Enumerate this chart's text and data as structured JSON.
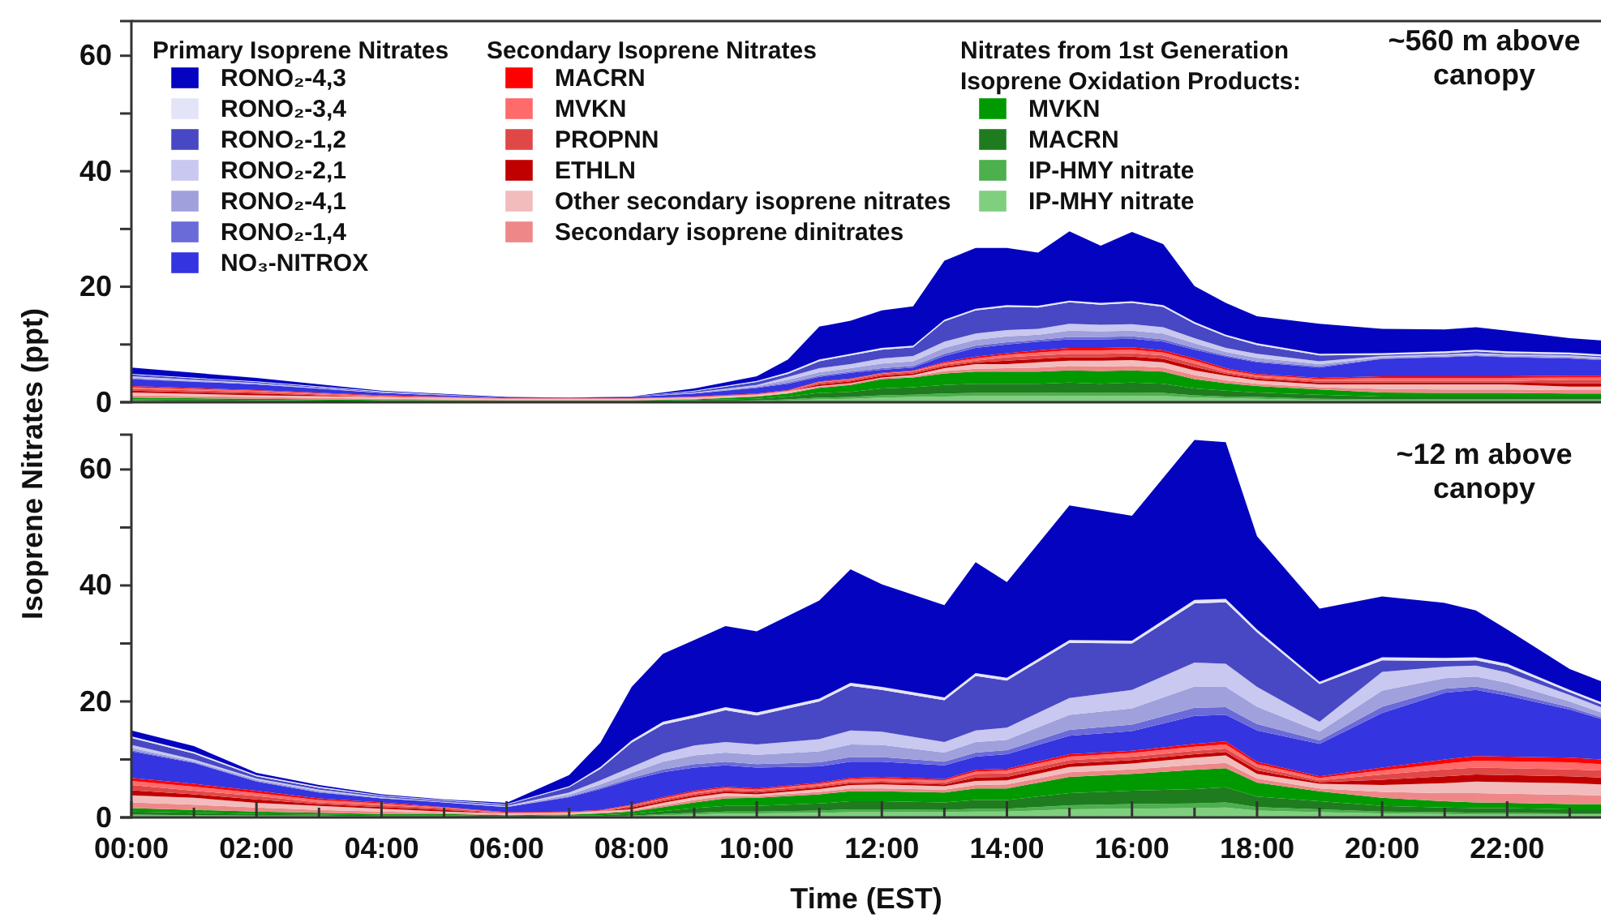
{
  "chart_data": [
    {
      "type": "area",
      "stacked": true,
      "legend": "top",
      "tick_labels": "y",
      "annotations": [
        "Primary Isoprene Nitrates",
        "Secondary Isoprene Nitrates",
        "Nitrates from 1st Generation Isoprene Oxidation Products:",
        "~560 m above canopy"
      ],
      "x": [
        0,
        2,
        4,
        6,
        7,
        8,
        9,
        10,
        10.5,
        11,
        11.5,
        12,
        12.5,
        13,
        13.5,
        14,
        14.5,
        15,
        15.5,
        16,
        16.5,
        17,
        17.5,
        18,
        19,
        20,
        21,
        21.5,
        22,
        23,
        23.5
      ],
      "xlim": [
        0,
        23.5
      ],
      "ylim": [
        0,
        66
      ],
      "yticks": [
        0,
        {
          "value": 10,
          "label": null
        },
        20,
        {
          "value": 30,
          "label": null
        },
        40,
        {
          "value": 50,
          "label": null
        },
        60
      ],
      "series": [
        {
          "name": "IP-MHY nitrate",
          "color": "#7fcf7f",
          "values": [
            0.2,
            0.1,
            0.1,
            0.1,
            0.1,
            0.1,
            0.1,
            0.2,
            0.3,
            0.5,
            0.6,
            0.8,
            0.9,
            1.0,
            1.1,
            1.1,
            1.1,
            1.1,
            1.1,
            1.1,
            1.1,
            0.8,
            0.7,
            0.6,
            0.4,
            0.3,
            0.3,
            0.3,
            0.3,
            0.3,
            0.3
          ]
        },
        {
          "name": "IP-HMY nitrate",
          "color": "#4cb04c",
          "values": [
            0.1,
            0.1,
            0.0,
            0.0,
            0.0,
            0.0,
            0.1,
            0.1,
            0.2,
            0.3,
            0.3,
            0.4,
            0.4,
            0.5,
            0.5,
            0.5,
            0.5,
            0.6,
            0.5,
            0.6,
            0.5,
            0.4,
            0.3,
            0.3,
            0.2,
            0.2,
            0.2,
            0.2,
            0.2,
            0.2,
            0.2
          ]
        },
        {
          "name": "MACRN",
          "color": "#1e7c1e",
          "values": [
            0.2,
            0.2,
            0.1,
            0.1,
            0.1,
            0.1,
            0.2,
            0.3,
            0.5,
            0.8,
            0.9,
            1.2,
            1.3,
            1.5,
            1.6,
            1.6,
            1.6,
            1.7,
            1.6,
            1.7,
            1.6,
            1.2,
            1.0,
            0.8,
            0.7,
            0.5,
            0.5,
            0.5,
            0.5,
            0.5,
            0.5
          ]
        },
        {
          "name": "MVKN",
          "color": "#009a00",
          "values": [
            0.3,
            0.2,
            0.2,
            0.1,
            0.1,
            0.1,
            0.1,
            0.4,
            0.5,
            0.9,
            1.2,
            1.6,
            1.7,
            2.0,
            2.1,
            2.1,
            2.1,
            2.1,
            2.2,
            2.1,
            2.1,
            1.6,
            1.3,
            1.1,
            0.9,
            0.7,
            0.6,
            0.6,
            0.6,
            0.5,
            0.5
          ]
        },
        {
          "name": "Secondary isoprene dinitrates",
          "color": "#ee8888",
          "values": [
            0.4,
            0.3,
            0.2,
            0.1,
            0.1,
            0.1,
            0.1,
            0.1,
            0.1,
            0.2,
            0.2,
            0.2,
            0.2,
            0.4,
            0.5,
            0.6,
            0.7,
            0.8,
            0.8,
            0.8,
            0.7,
            0.7,
            0.5,
            0.4,
            0.4,
            0.6,
            0.6,
            0.6,
            0.6,
            0.6,
            0.6
          ]
        },
        {
          "name": "Other secondary isoprene nitrates",
          "color": "#f2bcbc",
          "values": [
            0.5,
            0.3,
            0.3,
            0.2,
            0.2,
            0.2,
            0.2,
            0.2,
            0.3,
            0.1,
            0.1,
            0.1,
            0.2,
            0.5,
            0.8,
            0.7,
            0.9,
            0.9,
            1.0,
            1.0,
            0.9,
            0.8,
            0.8,
            0.6,
            0.5,
            0.8,
            0.9,
            0.9,
            0.9,
            0.6,
            0.6
          ]
        },
        {
          "name": "ETHLN",
          "color": "#c00000",
          "values": [
            0.3,
            0.3,
            0.0,
            0.0,
            0.0,
            0.0,
            0.0,
            0.0,
            0.0,
            0.3,
            0.3,
            0.3,
            0.3,
            0.3,
            0.3,
            0.6,
            0.6,
            0.6,
            0.6,
            0.6,
            0.6,
            0.6,
            0.3,
            0.3,
            0.3,
            0.3,
            0.3,
            0.3,
            0.3,
            0.6,
            0.6
          ]
        },
        {
          "name": "PROPNN",
          "color": "#e04848",
          "values": [
            0.3,
            0.3,
            0.0,
            0.0,
            0.0,
            0.0,
            0.0,
            0.0,
            0.0,
            0.3,
            0.3,
            0.3,
            0.3,
            0.3,
            0.3,
            0.6,
            0.6,
            0.6,
            0.6,
            0.6,
            0.6,
            0.6,
            0.3,
            0.3,
            0.3,
            0.3,
            0.3,
            0.3,
            0.3,
            0.6,
            0.6
          ]
        },
        {
          "name": "MVKN",
          "color": "#ff6a6a",
          "values": [
            0.3,
            0.2,
            0.2,
            0.1,
            0.1,
            0.1,
            0.1,
            0.1,
            0.1,
            0.1,
            0.1,
            0.1,
            0.1,
            0.3,
            0.4,
            0.4,
            0.5,
            0.6,
            0.6,
            0.6,
            0.5,
            0.5,
            0.4,
            0.3,
            0.3,
            0.5,
            0.5,
            0.5,
            0.5,
            0.4,
            0.4
          ]
        },
        {
          "name": "MACRN",
          "color": "#ff0000",
          "values": [
            0.2,
            0.1,
            0.1,
            0.0,
            0.0,
            0.0,
            0.1,
            0.1,
            0.1,
            0.1,
            0.1,
            0.1,
            0.1,
            0.2,
            0.3,
            0.3,
            0.4,
            0.4,
            0.4,
            0.4,
            0.4,
            0.4,
            0.3,
            0.2,
            0.2,
            0.3,
            0.3,
            0.3,
            0.3,
            0.3,
            0.3
          ]
        },
        {
          "name": "NO₃-NITROX",
          "color": "#3434e0",
          "values": [
            1.2,
            1.0,
            0.4,
            0.1,
            0.1,
            0.2,
            0.5,
            1.0,
            1.1,
            0.8,
            1.0,
            0.5,
            0.5,
            1.0,
            1.5,
            1.5,
            1.5,
            1.5,
            1.5,
            1.5,
            1.5,
            1.5,
            2.0,
            2.0,
            1.8,
            3.0,
            3.3,
            3.5,
            3.3,
            3.0,
            2.7
          ]
        },
        {
          "name": "RONO₂-1,4",
          "color": "#6a6ad8",
          "values": [
            0.1,
            0.0,
            0.0,
            0.0,
            0.0,
            0.0,
            0.0,
            0.1,
            0.2,
            0.2,
            0.2,
            0.3,
            0.3,
            0.4,
            0.4,
            0.4,
            0.3,
            0.4,
            0.4,
            0.4,
            0.4,
            0.3,
            0.2,
            0.2,
            0.2,
            0.1,
            0.1,
            0.1,
            0.1,
            0.1,
            0.1
          ]
        },
        {
          "name": "RONO₂-4,1",
          "color": "#a0a0dc",
          "values": [
            0.2,
            0.1,
            0.0,
            0.0,
            0.0,
            0.0,
            0.1,
            0.2,
            0.5,
            0.6,
            0.6,
            0.8,
            0.8,
            1.0,
            1.0,
            1.0,
            0.9,
            1.1,
            1.0,
            1.0,
            1.0,
            0.8,
            0.6,
            0.6,
            0.4,
            0.2,
            0.2,
            0.2,
            0.2,
            0.2,
            0.2
          ]
        },
        {
          "name": "RONO₂-2,1",
          "color": "#c8c8f0",
          "values": [
            0.2,
            0.1,
            0.1,
            0.0,
            0.0,
            0.0,
            0.1,
            0.2,
            0.5,
            0.7,
            0.7,
            0.9,
            0.9,
            1.1,
            1.1,
            1.1,
            1.0,
            1.2,
            1.1,
            1.1,
            1.1,
            0.9,
            0.7,
            0.7,
            0.5,
            0.2,
            0.2,
            0.2,
            0.2,
            0.2,
            0.2
          ]
        },
        {
          "name": "RONO₂-1,2",
          "color": "#4848c4",
          "values": [
            0.3,
            0.2,
            0.1,
            0.0,
            0.0,
            0.1,
            0.2,
            0.5,
            0.5,
            1.2,
            1.5,
            1.5,
            1.5,
            3.5,
            4.0,
            4.0,
            3.7,
            3.7,
            3.5,
            3.7,
            3.5,
            2.5,
            2.0,
            1.5,
            1.0,
            0.2,
            0.2,
            0.3,
            0.2,
            0.2,
            0.2
          ]
        },
        {
          "name": "RONO₂-3,4",
          "color": "#e4e4f8",
          "values": [
            0.1,
            0.1,
            0.1,
            0.0,
            0.0,
            0.0,
            0.1,
            0.2,
            0.3,
            0.3,
            0.3,
            0.3,
            0.3,
            0.3,
            0.3,
            0.3,
            0.3,
            0.3,
            0.3,
            0.3,
            0.3,
            0.3,
            0.3,
            0.3,
            0.3,
            0.3,
            0.3,
            0.3,
            0.3,
            0.3,
            0.3
          ]
        },
        {
          "name": "RONO₂-4,3",
          "color": "#0404c0",
          "values": [
            1.1,
            0.6,
            0.1,
            0.1,
            0.0,
            0.0,
            0.4,
            0.8,
            2.2,
            5.7,
            5.7,
            6.5,
            6.8,
            10.2,
            10.5,
            9.9,
            9.2,
            12.0,
            9.9,
            12.0,
            10.6,
            6.2,
            5.5,
            4.7,
            5.2,
            4.2,
            3.8,
            3.9,
            3.6,
            2.5,
            2.4
          ]
        }
      ]
    },
    {
      "type": "area",
      "stacked": true,
      "xlabel": "Time (EST)",
      "ylabel": "Isoprene Nitrates (ppt)",
      "annotations": [
        "~12 m above canopy"
      ],
      "x": [
        0,
        1,
        2,
        3,
        4,
        5,
        6,
        7,
        7.5,
        8,
        8.5,
        9,
        9.5,
        10,
        11,
        11.5,
        12,
        13,
        13.5,
        14,
        15,
        16,
        17,
        17.5,
        18,
        19,
        20,
        21,
        21.5,
        22,
        23,
        23.5
      ],
      "xlim": [
        0,
        23.5
      ],
      "xticks": [
        {
          "value": 0,
          "label": "00:00"
        },
        {
          "value": 1,
          "label": null
        },
        {
          "value": 2,
          "label": "02:00"
        },
        {
          "value": 3,
          "label": null
        },
        {
          "value": 4,
          "label": "04:00"
        },
        {
          "value": 5,
          "label": null
        },
        {
          "value": 6,
          "label": "06:00"
        },
        {
          "value": 7,
          "label": null
        },
        {
          "value": 8,
          "label": "08:00"
        },
        {
          "value": 9,
          "label": null
        },
        {
          "value": 10,
          "label": "10:00"
        },
        {
          "value": 11,
          "label": null
        },
        {
          "value": 12,
          "label": "12:00"
        },
        {
          "value": 13,
          "label": null
        },
        {
          "value": 14,
          "label": "14:00"
        },
        {
          "value": 15,
          "label": null
        },
        {
          "value": 16,
          "label": "16:00"
        },
        {
          "value": 17,
          "label": null
        },
        {
          "value": 18,
          "label": "18:00"
        },
        {
          "value": 19,
          "label": null
        },
        {
          "value": 20,
          "label": "20:00"
        },
        {
          "value": 21,
          "label": null
        },
        {
          "value": 22,
          "label": "22:00"
        },
        {
          "value": 23,
          "label": null
        }
      ],
      "ylim": [
        0,
        66
      ],
      "yticks": [
        0,
        {
          "value": 10,
          "label": null
        },
        20,
        {
          "value": 30,
          "label": null
        },
        40,
        {
          "value": 50,
          "label": null
        },
        60
      ],
      "series": [
        {
          "color": "#7fcf7f",
          "values": [
            0.3,
            0.3,
            0.2,
            0.2,
            0.1,
            0.1,
            0.1,
            0.1,
            0.1,
            0.2,
            0.4,
            0.5,
            0.7,
            0.7,
            0.8,
            0.9,
            0.9,
            0.9,
            1.0,
            1.0,
            1.4,
            1.5,
            1.6,
            1.7,
            1.2,
            0.9,
            0.7,
            0.6,
            0.5,
            0.5,
            0.5,
            0.5
          ]
        },
        {
          "color": "#4cb04c",
          "values": [
            0.2,
            0.1,
            0.1,
            0.1,
            0.1,
            0.1,
            0.0,
            0.1,
            0.1,
            0.1,
            0.2,
            0.3,
            0.3,
            0.3,
            0.4,
            0.5,
            0.5,
            0.4,
            0.5,
            0.5,
            0.7,
            0.8,
            0.8,
            0.9,
            0.6,
            0.5,
            0.3,
            0.3,
            0.3,
            0.3,
            0.2,
            0.2
          ]
        },
        {
          "color": "#1e7c1e",
          "values": [
            0.5,
            0.4,
            0.3,
            0.2,
            0.2,
            0.2,
            0.1,
            0.2,
            0.2,
            0.3,
            0.5,
            0.8,
            1.0,
            1.0,
            1.2,
            1.4,
            1.4,
            1.3,
            1.5,
            1.5,
            2.1,
            2.3,
            2.5,
            2.6,
            1.8,
            1.4,
            1.0,
            0.8,
            0.8,
            0.8,
            0.7,
            0.7
          ]
        },
        {
          "color": "#009a00",
          "values": [
            0.6,
            0.5,
            0.4,
            0.3,
            0.2,
            0.2,
            0.2,
            0.1,
            0.3,
            0.4,
            0.7,
            1.0,
            1.3,
            1.4,
            1.6,
            1.7,
            1.7,
            1.7,
            2.0,
            2.0,
            2.8,
            2.9,
            3.3,
            3.3,
            2.4,
            1.7,
            1.4,
            1.1,
            1.0,
            0.9,
            0.9,
            0.9
          ]
        },
        {
          "color": "#ee8888",
          "values": [
            1.0,
            0.9,
            0.7,
            0.5,
            0.4,
            0.2,
            0.1,
            0.1,
            0.1,
            0.2,
            0.3,
            0.4,
            0.4,
            0.3,
            0.4,
            0.5,
            0.5,
            0.5,
            0.6,
            0.7,
            0.8,
            0.8,
            0.9,
            0.9,
            0.7,
            0.5,
            1.0,
            1.4,
            1.6,
            1.6,
            1.6,
            1.5
          ]
        },
        {
          "color": "#f2bcbc",
          "values": [
            1.2,
            1.2,
            0.8,
            0.7,
            0.5,
            0.2,
            0.2,
            0.2,
            0.3,
            0.2,
            0.4,
            0.5,
            0.5,
            0.3,
            0.5,
            0.6,
            0.7,
            0.6,
            0.7,
            0.7,
            0.9,
            1.0,
            1.2,
            1.3,
            0.8,
            0.8,
            1.2,
            1.7,
            2.0,
            2.0,
            2.0,
            1.9
          ]
        },
        {
          "color": "#c00000",
          "values": [
            0.9,
            0.6,
            0.6,
            0.3,
            0.3,
            0.3,
            0.0,
            0.0,
            0.0,
            0.3,
            0.3,
            0.3,
            0.3,
            0.3,
            0.3,
            0.3,
            0.3,
            0.3,
            0.6,
            0.6,
            0.6,
            0.6,
            0.6,
            0.6,
            0.6,
            0.3,
            0.9,
            1.2,
            1.2,
            1.2,
            1.2,
            1.2
          ]
        },
        {
          "color": "#e04848",
          "values": [
            0.9,
            0.6,
            0.6,
            0.3,
            0.3,
            0.3,
            0.0,
            0.0,
            0.0,
            0.3,
            0.3,
            0.3,
            0.3,
            0.3,
            0.3,
            0.3,
            0.3,
            0.3,
            0.6,
            0.6,
            0.6,
            0.6,
            0.6,
            0.6,
            0.6,
            0.3,
            0.9,
            1.2,
            1.2,
            1.2,
            1.2,
            1.2
          ]
        },
        {
          "color": "#ff6a6a",
          "values": [
            0.7,
            0.7,
            0.5,
            0.4,
            0.3,
            0.1,
            0.1,
            0.1,
            0.1,
            0.1,
            0.2,
            0.3,
            0.3,
            0.2,
            0.3,
            0.4,
            0.4,
            0.4,
            0.4,
            0.5,
            0.6,
            0.6,
            0.7,
            0.7,
            0.5,
            0.4,
            0.7,
            1.0,
            1.2,
            1.2,
            1.2,
            1.1
          ]
        },
        {
          "color": "#ff0000",
          "values": [
            0.5,
            0.5,
            0.4,
            0.3,
            0.2,
            0.1,
            0.1,
            0.1,
            0.1,
            0.1,
            0.2,
            0.2,
            0.2,
            0.2,
            0.2,
            0.2,
            0.3,
            0.2,
            0.3,
            0.3,
            0.4,
            0.4,
            0.5,
            0.5,
            0.4,
            0.3,
            0.5,
            0.7,
            0.8,
            0.8,
            0.8,
            0.8
          ]
        },
        {
          "color": "#3434e0",
          "values": [
            4.6,
            3.6,
            1.6,
            1.0,
            0.7,
            0.8,
            0.9,
            2.5,
            3.6,
            4.3,
            4.3,
            4.0,
            3.7,
            3.6,
            2.8,
            2.8,
            2.6,
            2.4,
            2.3,
            2.5,
            3.2,
            3.4,
            4.8,
            4.6,
            5.4,
            5.6,
            9.4,
            11.5,
            11.4,
            10.5,
            8.3,
            7.0
          ]
        },
        {
          "color": "#6a6ad8",
          "values": [
            0.2,
            0.1,
            0.1,
            0.1,
            0.0,
            0.0,
            0.0,
            0.1,
            0.2,
            0.3,
            0.5,
            0.6,
            0.6,
            0.6,
            0.7,
            0.8,
            0.8,
            0.6,
            0.7,
            0.7,
            1.0,
            1.1,
            1.4,
            1.3,
            1.1,
            0.6,
            1.1,
            0.7,
            0.6,
            0.6,
            0.4,
            0.3
          ]
        },
        {
          "color": "#a0a0dc",
          "values": [
            0.4,
            0.2,
            0.2,
            0.2,
            0.1,
            0.0,
            0.1,
            0.3,
            0.6,
            0.9,
            1.3,
            1.5,
            1.6,
            1.6,
            1.9,
            2.2,
            2.1,
            1.6,
            1.8,
            1.8,
            2.6,
            2.8,
            3.7,
            3.5,
            3.0,
            1.5,
            2.8,
            1.8,
            1.7,
            1.6,
            1.0,
            0.8
          ]
        },
        {
          "color": "#c8c8f0",
          "values": [
            0.5,
            0.3,
            0.2,
            0.2,
            0.1,
            0.1,
            0.1,
            0.4,
            0.7,
            1.0,
            1.4,
            1.7,
            1.8,
            1.8,
            2.1,
            2.4,
            2.3,
            1.8,
            2.0,
            2.1,
            2.9,
            3.2,
            4.1,
            4.0,
            3.4,
            1.7,
            3.2,
            2.0,
            1.9,
            1.8,
            1.1,
            0.9
          ]
        },
        {
          "color": "#4848c4",
          "values": [
            1.2,
            1.0,
            0.4,
            0.3,
            0.2,
            0.2,
            0.2,
            0.9,
            2.0,
            4.2,
            5.0,
            4.8,
            5.5,
            5.0,
            6.5,
            7.7,
            7.2,
            7.2,
            9.4,
            8.1,
            9.5,
            8.0,
            10.2,
            10.6,
            9.4,
            6.5,
            2.0,
            1.0,
            0.9,
            1.0,
            0.5,
            0.5
          ]
        },
        {
          "color": "#e4e4f8",
          "values": [
            0.3,
            0.3,
            0.2,
            0.2,
            0.1,
            0.1,
            0.1,
            0.2,
            0.3,
            0.4,
            0.5,
            0.5,
            0.5,
            0.5,
            0.5,
            0.5,
            0.5,
            0.5,
            0.5,
            0.5,
            0.5,
            0.5,
            0.6,
            0.6,
            0.5,
            0.4,
            0.5,
            0.5,
            0.5,
            0.5,
            0.4,
            0.4
          ]
        },
        {
          "color": "#0404c0",
          "values": [
            1.0,
            1.0,
            0.4,
            0.3,
            0.2,
            0.1,
            0.2,
            1.9,
            4.2,
            9.2,
            11.7,
            12.9,
            14.0,
            14.0,
            16.9,
            19.6,
            17.7,
            15.9,
            19.1,
            16.5,
            23.2,
            21.5,
            27.6,
            27.0,
            16.1,
            12.6,
            10.5,
            9.5,
            8.1,
            5.9,
            3.6,
            3.6
          ]
        }
      ]
    }
  ]
}
